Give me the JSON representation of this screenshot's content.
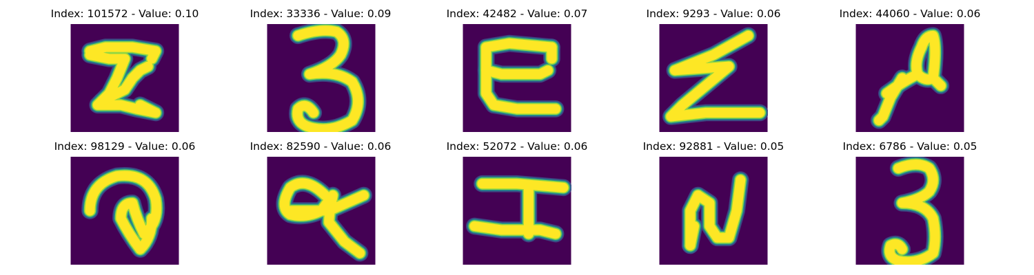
{
  "colors": {
    "background": "#440154",
    "stroke_core": "#fde725",
    "stroke_edge_1": "#21918c",
    "stroke_edge_2": "#3b528b",
    "stroke_edge_3": "#90d743"
  },
  "samples": [
    {
      "index": "101572",
      "value": "0.10",
      "glyph": "I-like"
    },
    {
      "index": "33336",
      "value": "0.09",
      "glyph": "3"
    },
    {
      "index": "42482",
      "value": "0.07",
      "glyph": "E-like"
    },
    {
      "index": "9293",
      "value": "0.06",
      "glyph": "Z"
    },
    {
      "index": "44060",
      "value": "0.06",
      "glyph": "a-like"
    },
    {
      "index": "98129",
      "value": "0.06",
      "glyph": "curl"
    },
    {
      "index": "82590",
      "value": "0.06",
      "glyph": "q-like"
    },
    {
      "index": "52072",
      "value": "0.06",
      "glyph": "I-bar"
    },
    {
      "index": "92881",
      "value": "0.05",
      "glyph": "N"
    },
    {
      "index": "6786",
      "value": "0.05",
      "glyph": "3-tall"
    }
  ],
  "captions": [
    "Index: 101572 - Value: 0.10",
    "Index: 33336 - Value: 0.09",
    "Index: 42482 - Value: 0.07",
    "Index: 9293 - Value: 0.06",
    "Index: 44060 - Value: 0.06",
    "Index: 98129 - Value: 0.06",
    "Index: 82590 - Value: 0.06",
    "Index: 52072 - Value: 0.06",
    "Index: 92881 - Value: 0.05",
    "Index: 6786 - Value: 0.05"
  ]
}
